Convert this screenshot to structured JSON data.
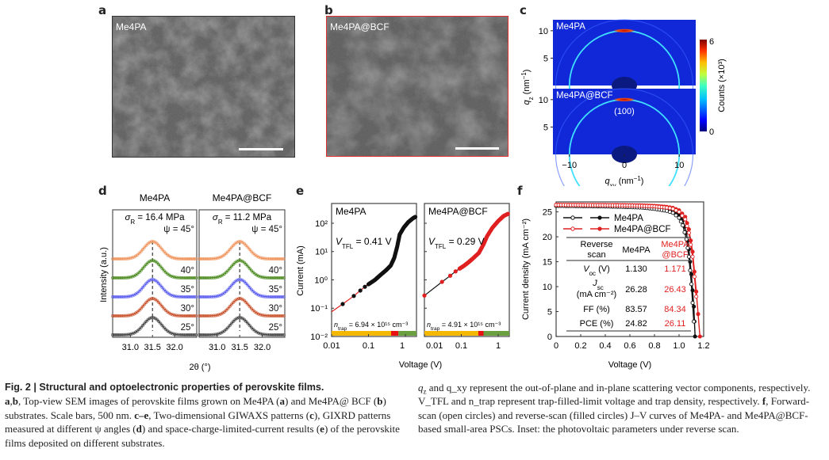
{
  "figure": {
    "panels": {
      "a": {
        "label": "a",
        "tag": "Me4PA",
        "border_color": "#333333"
      },
      "b": {
        "label": "b",
        "tag": "Me4PA@BCF",
        "border_color": "#e03030"
      },
      "c": {
        "label": "c"
      },
      "d": {
        "label": "d"
      },
      "e": {
        "label": "e"
      },
      "f": {
        "label": "f"
      }
    },
    "caption": {
      "title": "Fig. 2 | Structural and optoelectronic properties of perovskite films.",
      "col1": [
        {
          "b": "a",
          "t": ","
        },
        {
          "b": "b",
          "t": ", Top-view SEM images of perovskite films grown on Me4PA ("
        },
        {
          "b": "a",
          "t": ") and Me4PA@ BCF ("
        },
        {
          "b": "b",
          "t": ") substrates. Scale bars, 500 nm. "
        },
        {
          "b": "c–e",
          "t": ", Two-dimensional GIWAXS patterns ("
        },
        {
          "b": "c",
          "t": "), GIXRD patterns measured at different ψ angles ("
        },
        {
          "b": "d",
          "t": ") and space-charge-limited-current results ("
        },
        {
          "b": "e",
          "t": ") of the perovskite films deposited on different substrates."
        }
      ],
      "col2_a": "q",
      "col2_text": "and q_xy represent the out-of-plane and in-plane scattering vector components, respectively. V_TFL and n_trap represent trap-filled-limit voltage and trap density, respectively.",
      "col2_f_label": "f",
      "col2_f_text": ", Forward-scan (open circles) and reverse-scan (filled circles) J–V curves of Me4PA- and Me4PA@BCF-based small-area PSCs. Inset: the photovoltaic parameters under reverse scan."
    }
  },
  "chart_data": [
    {
      "panel": "c",
      "type": "heatmap",
      "title": "Two-dimensional GIWAXS patterns",
      "subplots": [
        {
          "name": "Me4PA",
          "ring_q": 10,
          "peak_label": ""
        },
        {
          "name": "Me4PA@BCF",
          "ring_q": 10,
          "peak_label": "(100)"
        }
      ],
      "xlabel": "q_xy (nm^-1)",
      "ylabel": "q_z (nm^-1)",
      "xticks": [
        "−10",
        "0",
        "10"
      ],
      "yticks": [
        "5",
        "10"
      ],
      "xlim": [
        -13,
        13
      ],
      "ylim": [
        0,
        12
      ],
      "colorbar": {
        "label": "Counts (×10³)",
        "min": "0",
        "max": "6"
      }
    },
    {
      "panel": "d",
      "type": "line",
      "title": "GIXRD patterns at different ψ angles",
      "subplots": [
        {
          "name": "Me4PA",
          "stress": "σR = 16.4 MPa",
          "peak_2theta": 31.5
        },
        {
          "name": "Me4PA@BCF",
          "stress": "σR = 11.2 MPa",
          "peak_2theta": 31.5
        }
      ],
      "series": [
        {
          "name": "ψ = 45°",
          "label": "ψ = 45°",
          "color": "#f0925a"
        },
        {
          "name": "40°",
          "label": "40°",
          "color": "#4a8a1e"
        },
        {
          "name": "35°",
          "label": "35°",
          "color": "#5a5cf0"
        },
        {
          "name": "30°",
          "label": "30°",
          "color": "#c8502a"
        },
        {
          "name": "25°",
          "label": "25°",
          "color": "#444444"
        }
      ],
      "xlabel": "2θ (°)",
      "ylabel": "Intensity (a.u.)",
      "xticks": [
        "31.0",
        "31.5",
        "32.0"
      ],
      "xlim": [
        30.6,
        32.5
      ]
    },
    {
      "panel": "e",
      "type": "scatter",
      "title": "Space-charge-limited current",
      "xscale": "log",
      "yscale": "log",
      "xlabel": "Voltage (V)",
      "ylabel": "Current (mA)",
      "xlim": [
        0.01,
        2
      ],
      "ylim": [
        0.01,
        500
      ],
      "yticks": [
        "10⁻²",
        "10⁻¹",
        "10⁰",
        "10¹",
        "10²"
      ],
      "xticks_left": [
        "0.01",
        "0.1",
        "1"
      ],
      "xticks_right": [
        "0.01",
        "0.1",
        "1"
      ],
      "subplots": [
        {
          "name": "Me4PA",
          "vtfl_label": "V_TFL = 0.41 V",
          "vtfl": 0.41,
          "ntrap_label": "n_trap = 6.94 × 10¹⁵ cm⁻³",
          "point_color": "#111111",
          "fit_color": "#e02020",
          "points": [
            [
              0.02,
              0.14
            ],
            [
              0.04,
              0.27
            ],
            [
              0.06,
              0.42
            ],
            [
              0.08,
              0.57
            ],
            [
              0.1,
              0.7
            ],
            [
              0.15,
              1.0
            ],
            [
              0.2,
              1.4
            ],
            [
              0.3,
              2.2
            ],
            [
              0.4,
              3.2
            ],
            [
              0.5,
              6
            ],
            [
              0.6,
              15
            ],
            [
              0.7,
              40
            ],
            [
              0.9,
              70
            ],
            [
              1.2,
              110
            ],
            [
              1.6,
              150
            ],
            [
              1.9,
              170
            ]
          ],
          "regions": [
            0.41,
            0.65
          ]
        },
        {
          "name": "Me4PA@BCF",
          "vtfl_label": "V_TFL = 0.29 V",
          "vtfl": 0.29,
          "ntrap_label": "n_trap = 4.91 × 10¹⁵ cm⁻³",
          "point_color": "#e02020",
          "fit_color": "#111111",
          "points": [
            [
              0.01,
              0.28
            ],
            [
              0.03,
              0.85
            ],
            [
              0.05,
              1.4
            ],
            [
              0.07,
              2.0
            ],
            [
              0.09,
              2.5
            ],
            [
              0.12,
              3.2
            ],
            [
              0.15,
              4.0
            ],
            [
              0.2,
              5.5
            ],
            [
              0.3,
              9
            ],
            [
              0.4,
              18
            ],
            [
              0.5,
              35
            ],
            [
              0.7,
              70
            ],
            [
              1.0,
              120
            ],
            [
              1.4,
              180
            ],
            [
              1.9,
              220
            ]
          ],
          "regions": [
            0.29,
            0.4
          ]
        }
      ]
    },
    {
      "panel": "f",
      "type": "line",
      "title": "J–V curves",
      "xlabel": "Voltage (V)",
      "ylabel": "Current density (mA cm⁻²)",
      "xlim": [
        0,
        1.2
      ],
      "ylim": [
        0,
        27
      ],
      "xticks": [
        "0",
        "0.2",
        "0.4",
        "0.6",
        "0.8",
        "1.0",
        "1.2"
      ],
      "yticks": [
        "0",
        "5",
        "10",
        "15",
        "20",
        "25"
      ],
      "legend": [
        {
          "label": "Me4PA",
          "color": "#111111"
        },
        {
          "label": "Me4PA@BCF",
          "color": "#e02020"
        }
      ],
      "series": [
        {
          "name": "Me4PA reverse",
          "color": "#111111",
          "filled": true,
          "x": [
            0,
            0.1,
            0.2,
            0.3,
            0.4,
            0.5,
            0.6,
            0.7,
            0.8,
            0.9,
            0.95,
            1.0,
            1.03,
            1.06,
            1.08,
            1.1,
            1.12,
            1.13
          ],
          "y": [
            26.28,
            26.27,
            26.26,
            26.25,
            26.23,
            26.2,
            26.15,
            26.05,
            25.9,
            25.6,
            25.3,
            24.5,
            23.3,
            20.8,
            17.5,
            12.5,
            6,
            0
          ]
        },
        {
          "name": "Me4PA forward",
          "color": "#111111",
          "filled": false,
          "x": [
            0,
            0.1,
            0.2,
            0.3,
            0.4,
            0.5,
            0.6,
            0.7,
            0.8,
            0.9,
            0.95,
            1.0,
            1.03,
            1.06,
            1.08,
            1.1,
            1.12
          ],
          "y": [
            26.2,
            26.18,
            26.15,
            26.12,
            26.08,
            26.02,
            25.95,
            25.85,
            25.6,
            25.2,
            24.8,
            23.8,
            22.3,
            19.5,
            16,
            10.5,
            3
          ]
        },
        {
          "name": "Me4PA@BCF reverse",
          "color": "#e02020",
          "filled": true,
          "x": [
            0,
            0.1,
            0.2,
            0.3,
            0.4,
            0.5,
            0.6,
            0.7,
            0.8,
            0.9,
            0.95,
            1.0,
            1.05,
            1.08,
            1.11,
            1.14,
            1.17
          ],
          "y": [
            26.43,
            26.42,
            26.41,
            26.4,
            26.39,
            26.37,
            26.34,
            26.3,
            26.2,
            26.0,
            25.8,
            25.3,
            24.0,
            21.5,
            17,
            9,
            0
          ]
        },
        {
          "name": "Me4PA@BCF forward",
          "color": "#e02020",
          "filled": false,
          "x": [
            0,
            0.1,
            0.2,
            0.3,
            0.4,
            0.5,
            0.6,
            0.7,
            0.8,
            0.9,
            0.95,
            1.0,
            1.05,
            1.08,
            1.11,
            1.14
          ],
          "y": [
            26.38,
            26.37,
            26.36,
            26.35,
            26.33,
            26.3,
            26.27,
            26.2,
            26.1,
            25.85,
            25.6,
            25.0,
            23.5,
            20.8,
            16,
            8
          ]
        }
      ],
      "table": {
        "headers": [
          "Reverse scan",
          "Me4PA",
          "Me4PA @BCF"
        ],
        "rows": [
          {
            "param": "V_oc (V)",
            "me4pa": "1.130",
            "bcf": "1.171"
          },
          {
            "param": "J_sc (mA cm⁻²)",
            "me4pa": "26.28",
            "bcf": "26.43"
          },
          {
            "param": "FF (%)",
            "me4pa": "83.57",
            "bcf": "84.34"
          },
          {
            "param": "PCE (%)",
            "me4pa": "24.82",
            "bcf": "26.11"
          }
        ]
      }
    }
  ]
}
